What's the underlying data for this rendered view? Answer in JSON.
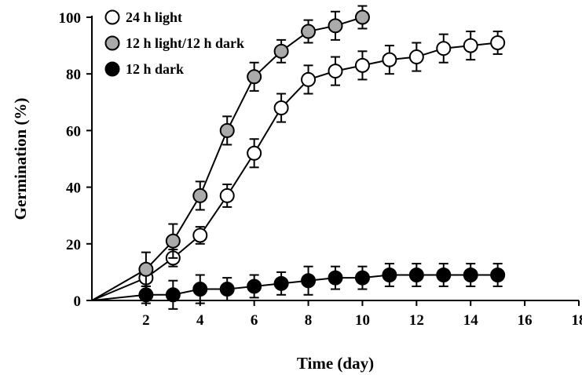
{
  "chart_data": {
    "type": "line",
    "xlabel": "Time (day)",
    "ylabel": "Germination (%)",
    "xlim": [
      0,
      18
    ],
    "ylim": [
      0,
      100
    ],
    "xticks": [
      2,
      4,
      6,
      8,
      10,
      12,
      14,
      16,
      18
    ],
    "yticks": [
      0,
      20,
      40,
      60,
      80,
      100
    ],
    "grid": false,
    "legend_position": "top-left",
    "series": [
      {
        "name": "24 h light",
        "marker_fill": "#ffffff",
        "x": [
          0,
          2,
          3,
          4,
          5,
          6,
          7,
          8,
          9,
          10,
          11,
          12,
          13,
          14,
          15
        ],
        "y": [
          0,
          8,
          15,
          23,
          37,
          52,
          68,
          78,
          81,
          83,
          85,
          86,
          89,
          90,
          91
        ],
        "err": [
          0,
          3,
          3,
          3,
          4,
          5,
          5,
          5,
          5,
          5,
          5,
          5,
          5,
          5,
          4
        ]
      },
      {
        "name": "12 h light/12 h dark",
        "marker_fill": "#aaaaaa",
        "x": [
          0,
          2,
          3,
          4,
          5,
          6,
          7,
          8,
          9,
          10
        ],
        "y": [
          0,
          11,
          21,
          37,
          60,
          79,
          88,
          95,
          97,
          100
        ],
        "err": [
          0,
          6,
          6,
          5,
          5,
          5,
          4,
          4,
          5,
          4
        ]
      },
      {
        "name": "12 h dark",
        "marker_fill": "#000000",
        "x": [
          0,
          2,
          3,
          4,
          5,
          6,
          7,
          8,
          9,
          10,
          11,
          12,
          13,
          14,
          15
        ],
        "y": [
          0,
          2,
          2,
          4,
          4,
          5,
          6,
          7,
          8,
          8,
          9,
          9,
          9,
          9,
          9
        ],
        "err": [
          0,
          3,
          5,
          5,
          4,
          4,
          4,
          5,
          4,
          4,
          4,
          4,
          4,
          4,
          4
        ]
      }
    ]
  }
}
